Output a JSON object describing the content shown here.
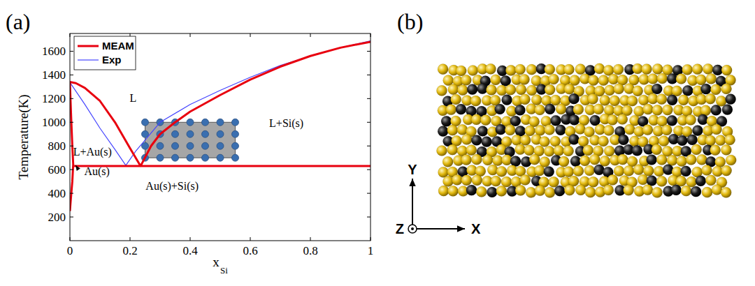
{
  "chart_data": {
    "type": "line",
    "panel_label": "(a)",
    "xlabel": "x",
    "xlabel_sub": "Si",
    "ylabel": "Temperature(K)",
    "xlim": [
      0,
      1
    ],
    "ylim": [
      0,
      1750
    ],
    "xticks": [
      0,
      0.2,
      0.4,
      0.6,
      0.8,
      1
    ],
    "yticks": [
      200,
      400,
      600,
      800,
      1000,
      1200,
      1400,
      1600
    ],
    "legend": "top-left",
    "series": [
      {
        "name": "MEAM",
        "color": "#e8000f",
        "line_style": "solid",
        "x": [
          0,
          0.02,
          0.05,
          0.1,
          0.15,
          0.2,
          0.235,
          0.27,
          0.3,
          0.35,
          0.4,
          0.5,
          0.6,
          0.7,
          0.8,
          0.9,
          1,
          null,
          0.01,
          1,
          null,
          0,
          0.004,
          0.008,
          0.011,
          0.008,
          0.004,
          0
        ],
        "values": [
          1340,
          1330,
          1290,
          1180,
          1000,
          780,
          630,
          800,
          900,
          1000,
          1090,
          1230,
          1360,
          1470,
          1560,
          1630,
          1680,
          null,
          630,
          630,
          null,
          1340,
          1050,
          800,
          645,
          500,
          380,
          250
        ]
      },
      {
        "name": "Exp",
        "color": "#4444ff",
        "line_style": "solid",
        "x": [
          0,
          0.05,
          0.1,
          0.15,
          0.186,
          0.22,
          0.3,
          0.4,
          0.5,
          0.6,
          0.7,
          0.8,
          0.9,
          1
        ],
        "values": [
          1337,
          1150,
          950,
          770,
          636,
          760,
          1000,
          1150,
          1270,
          1380,
          1480,
          1560,
          1630,
          1687
        ]
      }
    ],
    "sample_points": {
      "color": "#3a6fb0",
      "region_color": "#a6a6a6",
      "x": [
        0.25,
        0.3,
        0.35,
        0.4,
        0.45,
        0.5,
        0.55,
        0.25,
        0.3,
        0.35,
        0.4,
        0.45,
        0.5,
        0.55,
        0.25,
        0.3,
        0.35,
        0.4,
        0.45,
        0.5,
        0.55,
        0.25,
        0.3,
        0.35,
        0.4,
        0.45,
        0.5,
        0.55
      ],
      "y": [
        700,
        700,
        700,
        700,
        700,
        700,
        700,
        800,
        800,
        800,
        800,
        800,
        800,
        800,
        900,
        900,
        900,
        900,
        900,
        900,
        900,
        1000,
        1000,
        1000,
        1000,
        1000,
        1000,
        1000
      ]
    },
    "annotations": [
      {
        "text": "L",
        "x": 0.21,
        "y": 1170
      },
      {
        "text": "L+Si(s)",
        "x": 0.72,
        "y": 960
      },
      {
        "text": "L+Au(s)",
        "x": 0.075,
        "y": 720
      },
      {
        "text": "Au(s)",
        "x": 0.09,
        "y": 555,
        "arrow_to": [
          0.012,
          648
        ]
      },
      {
        "text": "Au(s)+Si(s)",
        "x": 0.34,
        "y": 430
      }
    ]
  },
  "panel_b": {
    "panel_label": "(b)",
    "axis_labels": [
      "X",
      "Y",
      "Z"
    ],
    "atom_colors": [
      "#e2b90f",
      "#1c1c1c"
    ]
  }
}
